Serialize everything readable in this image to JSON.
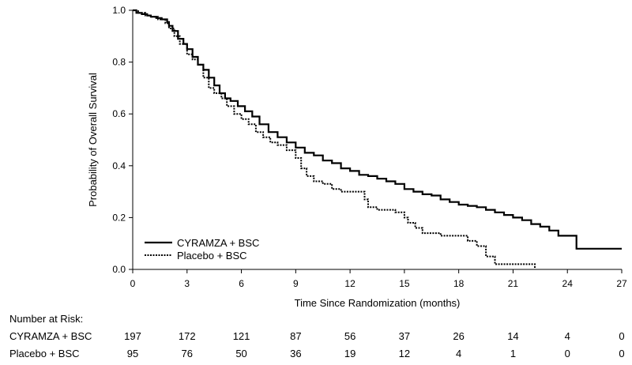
{
  "chart_data": {
    "type": "line",
    "title": "",
    "xlabel": "Time Since Randomization (months)",
    "ylabel": "Probability of Overall Survival",
    "xlim": [
      0,
      27
    ],
    "ylim": [
      0,
      1
    ],
    "x_ticks": [
      0,
      3,
      6,
      9,
      12,
      15,
      18,
      21,
      24,
      27
    ],
    "y_ticks": [
      0.0,
      0.2,
      0.4,
      0.6,
      0.8,
      1.0
    ],
    "y_tick_labels": [
      "0.0",
      "0.2",
      "0.4",
      "0.6",
      "0.8",
      "1.0"
    ],
    "grid": false,
    "legend_position": "bottom-left",
    "series": [
      {
        "name": "CYRAMZA + BSC",
        "style": "solid",
        "x": [
          0,
          0.2,
          0.5,
          0.8,
          1.0,
          1.3,
          1.6,
          1.9,
          2.0,
          2.2,
          2.5,
          2.8,
          3.0,
          3.3,
          3.6,
          3.9,
          4.2,
          4.5,
          4.8,
          5.1,
          5.4,
          5.8,
          6.2,
          6.6,
          7.0,
          7.5,
          8.0,
          8.5,
          9.0,
          9.5,
          10.0,
          10.5,
          11.0,
          11.5,
          12.0,
          12.5,
          13.0,
          13.5,
          14.0,
          14.5,
          15.0,
          15.5,
          16.0,
          16.5,
          17.0,
          17.5,
          18.0,
          18.5,
          19.0,
          19.5,
          20.0,
          20.5,
          21.0,
          21.5,
          22.0,
          22.5,
          23.0,
          23.5,
          24.0,
          24.5,
          27.0
        ],
        "y": [
          1.0,
          0.99,
          0.985,
          0.98,
          0.975,
          0.97,
          0.965,
          0.955,
          0.94,
          0.92,
          0.89,
          0.87,
          0.85,
          0.82,
          0.79,
          0.77,
          0.74,
          0.71,
          0.68,
          0.66,
          0.65,
          0.63,
          0.61,
          0.59,
          0.56,
          0.53,
          0.51,
          0.49,
          0.47,
          0.45,
          0.44,
          0.42,
          0.41,
          0.39,
          0.38,
          0.365,
          0.36,
          0.35,
          0.34,
          0.33,
          0.31,
          0.3,
          0.29,
          0.285,
          0.27,
          0.26,
          0.25,
          0.245,
          0.24,
          0.23,
          0.22,
          0.21,
          0.2,
          0.19,
          0.175,
          0.165,
          0.15,
          0.13,
          0.13,
          0.08,
          0.08
        ]
      },
      {
        "name": "Placebo + BSC",
        "style": "dotted",
        "x": [
          0,
          0.3,
          0.7,
          1.0,
          1.4,
          1.8,
          2.0,
          2.3,
          2.6,
          3.0,
          3.3,
          3.6,
          3.9,
          4.2,
          4.5,
          4.9,
          5.2,
          5.6,
          6.0,
          6.4,
          6.8,
          7.2,
          7.6,
          8.0,
          8.5,
          9.0,
          9.3,
          9.6,
          10.0,
          10.5,
          11.0,
          11.5,
          12.0,
          12.5,
          12.8,
          13.0,
          13.5,
          14.0,
          14.5,
          15.0,
          15.2,
          15.6,
          16.0,
          16.5,
          17.0,
          17.5,
          18.0,
          18.5,
          19.0,
          19.5,
          20.0,
          20.3,
          21.0,
          21.5,
          22.0,
          22.2
        ],
        "y": [
          1.0,
          0.99,
          0.98,
          0.975,
          0.965,
          0.95,
          0.93,
          0.9,
          0.87,
          0.83,
          0.81,
          0.79,
          0.74,
          0.7,
          0.68,
          0.66,
          0.63,
          0.6,
          0.58,
          0.56,
          0.53,
          0.51,
          0.49,
          0.48,
          0.46,
          0.43,
          0.39,
          0.36,
          0.34,
          0.33,
          0.31,
          0.3,
          0.3,
          0.3,
          0.27,
          0.24,
          0.23,
          0.23,
          0.22,
          0.2,
          0.18,
          0.16,
          0.14,
          0.14,
          0.13,
          0.13,
          0.13,
          0.11,
          0.09,
          0.05,
          0.02,
          0.02,
          0.02,
          0.02,
          0.02,
          0.0
        ]
      }
    ],
    "number_at_risk": {
      "title": "Number at Risk:",
      "time_points": [
        0,
        3,
        6,
        9,
        12,
        15,
        18,
        21,
        24,
        27
      ],
      "rows": [
        {
          "label": "CYRAMZA + BSC",
          "values": [
            "197",
            "172",
            "121",
            "87",
            "56",
            "37",
            "26",
            "14",
            "4",
            "0"
          ]
        },
        {
          "label": "Placebo + BSC",
          "values": [
            "95",
            "76",
            "50",
            "36",
            "19",
            "12",
            "4",
            "1",
            "0",
            "0"
          ]
        }
      ]
    }
  }
}
